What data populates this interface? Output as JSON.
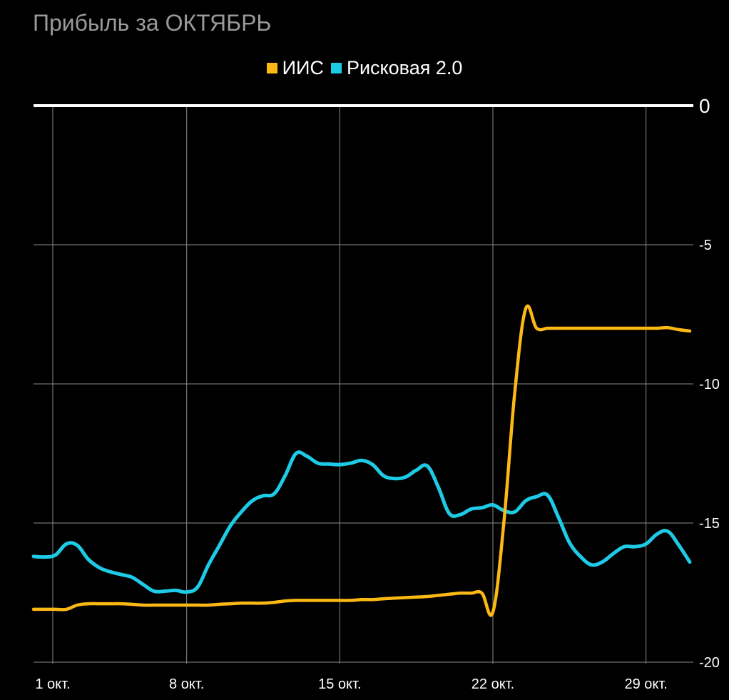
{
  "chart_data": {
    "type": "line",
    "title": "Прибыль за ОКТЯБРЬ",
    "xlabel": "",
    "ylabel": "",
    "x": [
      1,
      1.5,
      2,
      2.5,
      3,
      3.5,
      4,
      4.5,
      5,
      5.5,
      6,
      6.5,
      7,
      7.5,
      8,
      8.5,
      9,
      9.5,
      10,
      10.5,
      11,
      11.5,
      12,
      12.5,
      13,
      13.5,
      14,
      14.5,
      15,
      15.5,
      16,
      16.5,
      17,
      17.5,
      18,
      18.5,
      19,
      19.5,
      20,
      20.5,
      21,
      21.5,
      22,
      22.5,
      23,
      23.5,
      24,
      24.5,
      25,
      25.5,
      26,
      26.5,
      27,
      27.5,
      28,
      28.5,
      29,
      29.5,
      30,
      30.5,
      31
    ],
    "x_ticks": [
      1,
      8,
      15,
      22,
      29
    ],
    "x_tick_labels": [
      "1 окт.",
      "8 окт.",
      "15 окт.",
      "22 окт.",
      "29 окт."
    ],
    "y_ticks": [
      0,
      -5,
      -10,
      -15,
      -20
    ],
    "y_tick_labels": [
      "0",
      "-5",
      "-10",
      "-15",
      "-20"
    ],
    "ylim": [
      -20,
      0
    ],
    "xlim": [
      1,
      31
    ],
    "y_axis_side": "right",
    "grid": true,
    "legend_position": "top-center",
    "series": [
      {
        "name": "ИИС",
        "color": "#fcb814",
        "values": [
          -18.1,
          -18.1,
          -18.1,
          -18.1,
          -17.95,
          -17.9,
          -17.9,
          -17.9,
          -17.9,
          -17.92,
          -17.95,
          -17.95,
          -17.95,
          -17.95,
          -17.95,
          -17.95,
          -17.95,
          -17.92,
          -17.9,
          -17.88,
          -17.88,
          -17.88,
          -17.85,
          -17.8,
          -17.78,
          -17.78,
          -17.78,
          -17.78,
          -17.78,
          -17.78,
          -17.75,
          -17.75,
          -17.72,
          -17.7,
          -17.68,
          -17.66,
          -17.64,
          -17.6,
          -17.56,
          -17.52,
          -17.52,
          -17.52,
          -18.2,
          -15.0,
          -10.3,
          -7.3,
          -8.0,
          -8.0,
          -8.0,
          -8.0,
          -8.0,
          -8.0,
          -8.0,
          -8.0,
          -8.0,
          -8.0,
          -8.0,
          -8.0,
          -7.98,
          -8.05,
          -8.1
        ]
      },
      {
        "name": "Рисковая 2.0",
        "color": "#1ecbe6",
        "values": [
          -16.2,
          -16.22,
          -16.15,
          -15.75,
          -15.8,
          -16.3,
          -16.6,
          -16.75,
          -16.85,
          -16.95,
          -17.2,
          -17.45,
          -17.45,
          -17.42,
          -17.48,
          -17.3,
          -16.5,
          -15.8,
          -15.1,
          -14.6,
          -14.2,
          -14.02,
          -13.95,
          -13.3,
          -12.5,
          -12.6,
          -12.85,
          -12.88,
          -12.9,
          -12.85,
          -12.75,
          -12.9,
          -13.3,
          -13.4,
          -13.35,
          -13.1,
          -12.95,
          -13.7,
          -14.65,
          -14.7,
          -14.5,
          -14.45,
          -14.35,
          -14.55,
          -14.6,
          -14.2,
          -14.05,
          -14.0,
          -14.8,
          -15.7,
          -16.2,
          -16.5,
          -16.4,
          -16.1,
          -15.85,
          -15.85,
          -15.75,
          -15.4,
          -15.3,
          -15.8,
          -16.4
        ]
      }
    ]
  }
}
